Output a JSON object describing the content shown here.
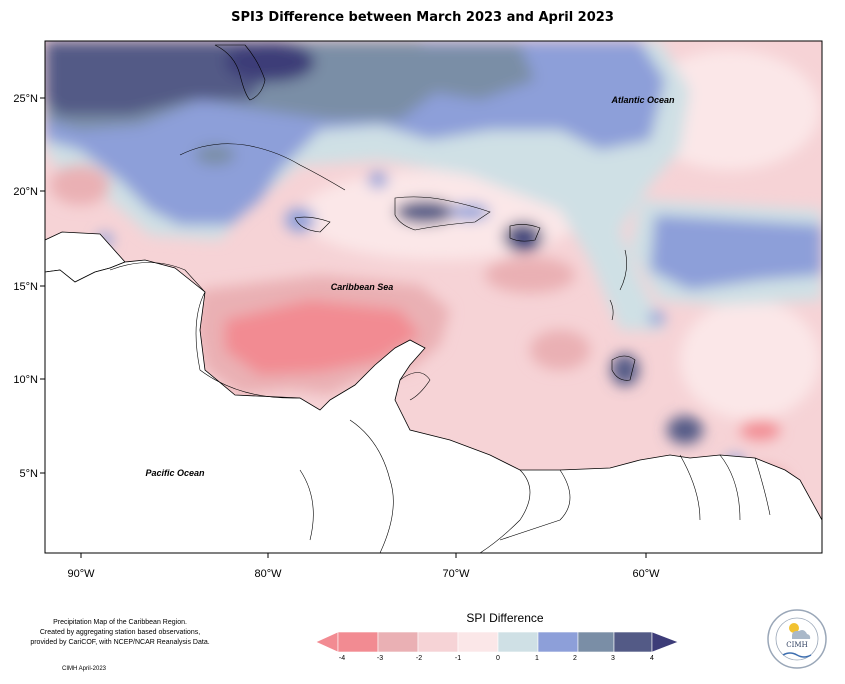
{
  "map": {
    "title": "SPI3 Difference between March 2023 and April 2023",
    "region_labels": [
      "Atlantic Ocean",
      "Caribbean Sea",
      "Pacific Ocean"
    ],
    "lon_ticks": [
      "90°W",
      "80°W",
      "70°W",
      "60°W"
    ],
    "lat_ticks": [
      "25°N",
      "20°N",
      "15°N",
      "10°N",
      "5°N"
    ]
  },
  "legend": {
    "title": "SPI Difference",
    "ticks": [
      "-4",
      "-3",
      "-2",
      "-1",
      "0",
      "1",
      "2",
      "3",
      "4"
    ],
    "colors": [
      "#f28b92",
      "#eab0b4",
      "#f6d3d6",
      "#fbe7e8",
      "#cfe0e5",
      "#8d9fd9",
      "#7a8ea6",
      "#535a86",
      "#3d3c78"
    ]
  },
  "credit": {
    "lines": [
      "Precipitation Map of the Caribbean Region.",
      "Created by aggregating station based observations,",
      "provided by CariCOF, with NCEP/NCAR Reanalysis Data."
    ],
    "issued": "CIMH April-2023"
  },
  "logo": {
    "text": "CIMH"
  }
}
